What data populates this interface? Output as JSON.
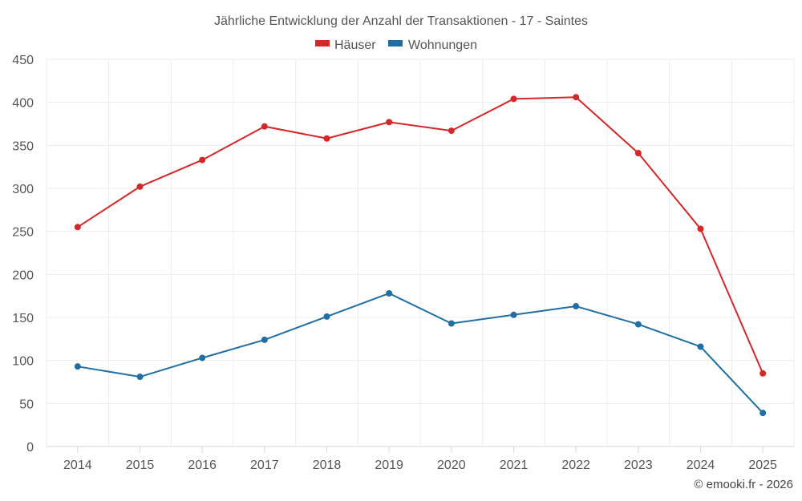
{
  "chart_data": {
    "type": "line",
    "title": "Jährliche Entwicklung der Anzahl der Transaktionen - 17 - Saintes",
    "xlabel": "",
    "ylabel": "",
    "categories": [
      "2014",
      "2015",
      "2016",
      "2017",
      "2018",
      "2019",
      "2020",
      "2021",
      "2022",
      "2023",
      "2024",
      "2025"
    ],
    "ylim": [
      0,
      450
    ],
    "yticks": [
      0,
      50,
      100,
      150,
      200,
      250,
      300,
      350,
      400,
      450
    ],
    "grid": true,
    "legend_position": "top-center",
    "series": [
      {
        "name": "Häuser",
        "color": "#d62728",
        "values": [
          255,
          302,
          333,
          372,
          358,
          377,
          367,
          404,
          406,
          341,
          253,
          85
        ]
      },
      {
        "name": "Wohnungen",
        "color": "#1f6fa5",
        "values": [
          93,
          81,
          103,
          124,
          151,
          178,
          143,
          153,
          163,
          142,
          116,
          39
        ]
      }
    ]
  },
  "credit": "© emooki.fr - 2026"
}
